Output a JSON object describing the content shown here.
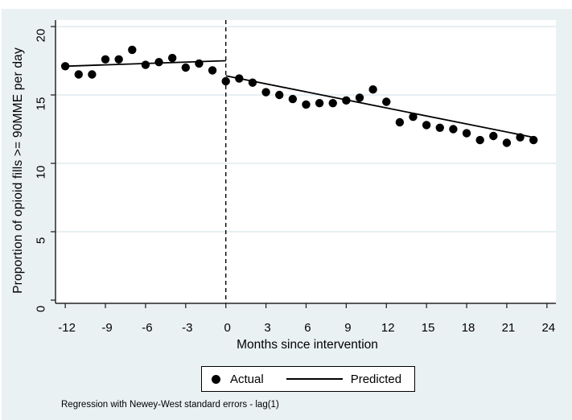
{
  "colors": {
    "graph_background": "#eaf1f3",
    "plot_background": "#ffffff",
    "gridline": "#dfeaee",
    "axis": "#262626",
    "marker": "#000000",
    "line": "#000000",
    "text": "#000000"
  },
  "chart_data": {
    "type": "scatter",
    "title": "",
    "xlabel": "Months since intervention",
    "ylabel": "Proportion of opioid fills >= 90MME per day",
    "x_ticks": [
      -12,
      -9,
      -6,
      -3,
      0,
      3,
      6,
      9,
      12,
      15,
      18,
      21,
      24
    ],
    "y_ticks": [
      0,
      5,
      10,
      15,
      20
    ],
    "ylim": [
      0,
      20
    ],
    "xlim": [
      -12.7,
      24.7
    ],
    "grid": true,
    "intervention_x": 0,
    "series": [
      {
        "name": "Actual",
        "type": "scatter",
        "marker": "filled-circle",
        "x": [
          -12,
          -11,
          -10,
          -9,
          -8,
          -7,
          -6,
          -5,
          -4,
          -3,
          -2,
          -1,
          0,
          1,
          2,
          3,
          4,
          5,
          6,
          7,
          8,
          9,
          10,
          11,
          12,
          13,
          14,
          15,
          16,
          17,
          18,
          19,
          20,
          21,
          22,
          23
        ],
        "y": [
          17.1,
          16.5,
          16.5,
          17.6,
          17.6,
          18.3,
          17.2,
          17.4,
          17.7,
          17.0,
          17.3,
          16.8,
          16.0,
          16.2,
          15.9,
          15.2,
          15.0,
          14.7,
          14.3,
          14.4,
          14.4,
          14.6,
          14.8,
          15.4,
          14.5,
          13.0,
          13.4,
          12.8,
          12.6,
          12.5,
          12.2,
          11.7,
          12.0,
          11.5,
          11.9,
          11.7
        ]
      },
      {
        "name": "Predicted",
        "type": "line",
        "segments": [
          {
            "x": [
              -12,
              0
            ],
            "y": [
              17.1,
              17.5
            ]
          },
          {
            "x": [
              0,
              23
            ],
            "y": [
              16.4,
              11.9
            ]
          }
        ]
      }
    ],
    "legend": {
      "position": "bottom-center",
      "entries": [
        "Actual",
        "Predicted"
      ]
    },
    "note": "Regression with Newey-West standard errors - lag(1)"
  }
}
